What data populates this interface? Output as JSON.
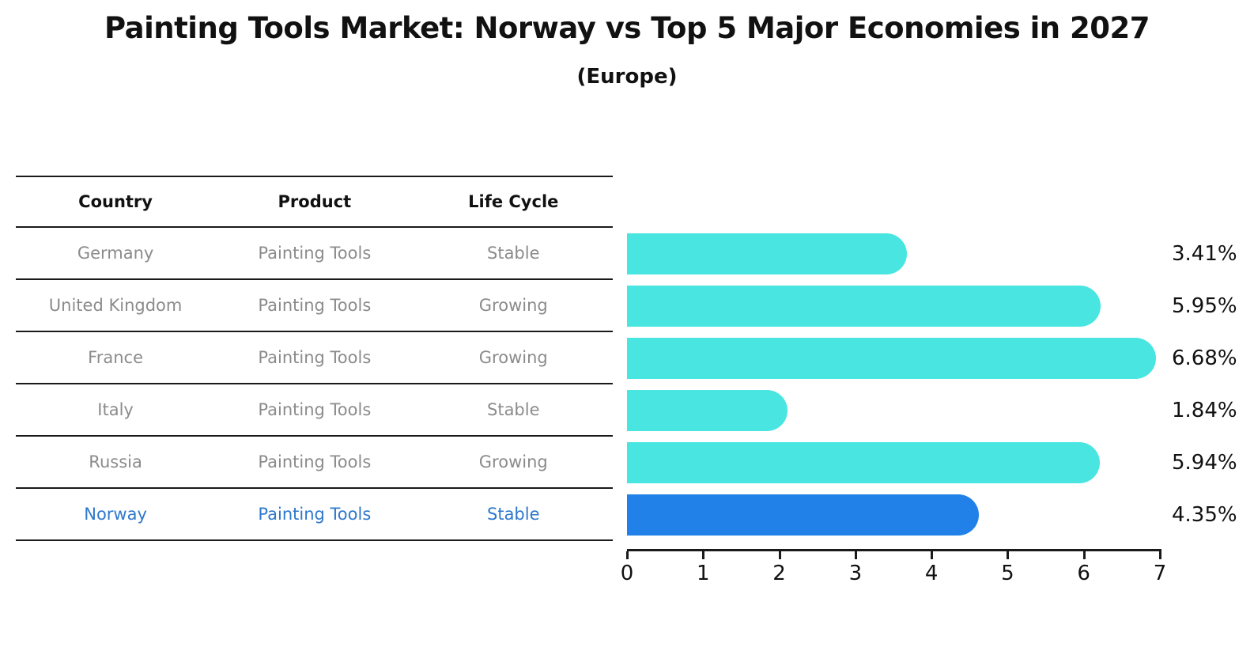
{
  "title": "Painting Tools Market: Norway vs Top 5 Major Economies in 2027",
  "subtitle": "(Europe)",
  "table": {
    "headers": [
      "Country",
      "Product",
      "Life Cycle"
    ],
    "rows": [
      {
        "country": "Germany",
        "product": "Painting Tools",
        "life_cycle": "Stable",
        "highlight": false
      },
      {
        "country": "United Kingdom",
        "product": "Painting Tools",
        "life_cycle": "Growing",
        "highlight": false
      },
      {
        "country": "France",
        "product": "Painting Tools",
        "life_cycle": "Growing",
        "highlight": false
      },
      {
        "country": "Italy",
        "product": "Painting Tools",
        "life_cycle": "Stable",
        "highlight": false
      },
      {
        "country": "Russia",
        "product": "Painting Tools",
        "life_cycle": "Growing",
        "highlight": false
      },
      {
        "country": "Norway",
        "product": "Painting Tools",
        "life_cycle": "Stable",
        "highlight": true
      }
    ]
  },
  "chart_data": {
    "type": "bar",
    "orientation": "horizontal",
    "title": "Painting Tools Market: Norway vs Top 5 Major Economies in 2027",
    "subtitle": "(Europe)",
    "categories": [
      "Germany",
      "United Kingdom",
      "France",
      "Italy",
      "Russia",
      "Norway"
    ],
    "values": [
      3.41,
      5.95,
      6.68,
      1.84,
      5.94,
      4.35
    ],
    "value_labels": [
      "3.41%",
      "5.95%",
      "6.68%",
      "1.84%",
      "5.94%",
      "4.35%"
    ],
    "xlim": [
      0,
      7
    ],
    "x_ticks": [
      0,
      1,
      2,
      3,
      4,
      5,
      6,
      7
    ],
    "xlabel": "",
    "ylabel": "",
    "grid": false,
    "legend": "none",
    "bar_color": "#48e5e1",
    "highlight_color": "#2181e8",
    "highlight_index": 5,
    "highlight_text_color": "#2e78cc"
  }
}
